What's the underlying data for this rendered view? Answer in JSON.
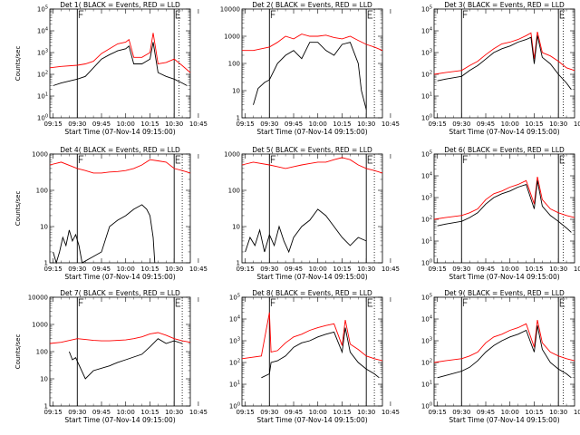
{
  "chart_data": {
    "type": "line",
    "grid": "off",
    "xlabel": "Start Time (07-Nov-14 09:15:00)",
    "xticks": [
      "09:15",
      "09:30",
      "09:45",
      "10:00",
      "10:15",
      "10:30",
      "10:45"
    ],
    "x_range_minutes": [
      -2,
      85
    ],
    "marker_labels": [
      "F",
      "E"
    ],
    "series_colors": {
      "events": "#000000",
      "lld": "#ff0000"
    },
    "panels": [
      {
        "title": "Det 1( BLACK = Events, RED = LLD",
        "ylabel": "Counts/sec",
        "yscale": "log",
        "ylim": [
          1,
          100000
        ],
        "yticks": [
          "10^0",
          "10^1",
          "10^2",
          "10^3",
          "10^4",
          "10^5"
        ],
        "markers_minutes": [
          15,
          75
        ],
        "dotted_minutes": [
          78
        ],
        "lld": {
          "x": [
            -2,
            5,
            15,
            20,
            25,
            30,
            35,
            40,
            45,
            47,
            50,
            55,
            60,
            62,
            65,
            70,
            75,
            80,
            85
          ],
          "y": [
            200,
            230,
            260,
            300,
            400,
            900,
            1500,
            2500,
            3000,
            4000,
            600,
            600,
            1000,
            8000,
            300,
            350,
            500,
            250,
            120
          ]
        },
        "events": {
          "x": [
            0,
            5,
            15,
            20,
            25,
            30,
            35,
            40,
            45,
            47,
            50,
            55,
            60,
            62,
            65,
            70,
            75,
            80,
            83
          ],
          "y": [
            30,
            40,
            60,
            80,
            200,
            500,
            800,
            1200,
            1500,
            2000,
            300,
            300,
            500,
            3000,
            120,
            80,
            60,
            40,
            30
          ]
        }
      },
      {
        "title": "Det 2( BLACK = Events, RED = LLD",
        "ylabel": "",
        "yscale": "log",
        "ylim": [
          1,
          10000
        ],
        "yticks": [
          "1",
          "10",
          "100",
          "1000",
          "10000"
        ],
        "markers_minutes": [
          15,
          75
        ],
        "dotted_minutes": [
          80
        ],
        "lld": {
          "x": [
            -2,
            5,
            15,
            20,
            25,
            30,
            35,
            40,
            45,
            50,
            55,
            60,
            65,
            70,
            75,
            80,
            85
          ],
          "y": [
            300,
            300,
            400,
            600,
            1000,
            800,
            1200,
            1000,
            1000,
            1100,
            900,
            800,
            1000,
            700,
            500,
            400,
            300
          ]
        },
        "events": {
          "x": [
            5,
            8,
            12,
            15,
            20,
            25,
            30,
            35,
            40,
            45,
            50,
            55,
            60,
            65,
            70,
            72,
            75
          ],
          "y": [
            3,
            12,
            20,
            25,
            100,
            200,
            300,
            150,
            600,
            600,
            300,
            200,
            500,
            600,
            100,
            10,
            2
          ]
        }
      },
      {
        "title": "Det 3( BLACK = Events, RED = LLD",
        "ylabel": "",
        "yscale": "log",
        "ylim": [
          1,
          100000
        ],
        "yticks": [
          "10^0",
          "10^1",
          "10^2",
          "10^3",
          "10^4",
          "10^5"
        ],
        "markers_minutes": [
          15,
          75
        ],
        "dotted_minutes": [
          78
        ],
        "lld": {
          "x": [
            -2,
            5,
            15,
            20,
            25,
            30,
            35,
            40,
            45,
            50,
            55,
            58,
            60,
            62,
            65,
            70,
            75,
            80,
            85
          ],
          "y": [
            100,
            120,
            150,
            250,
            400,
            800,
            1500,
            2500,
            3000,
            4000,
            6000,
            8000,
            500,
            9000,
            1000,
            700,
            400,
            200,
            150
          ]
        },
        "events": {
          "x": [
            0,
            5,
            15,
            20,
            25,
            30,
            35,
            40,
            45,
            50,
            55,
            58,
            60,
            62,
            65,
            70,
            75,
            80,
            83
          ],
          "y": [
            50,
            60,
            80,
            150,
            250,
            500,
            1000,
            1500,
            2000,
            3000,
            4000,
            5000,
            300,
            6000,
            600,
            300,
            100,
            40,
            20
          ]
        }
      },
      {
        "title": "Det 4( BLACK = Events, RED = LLD",
        "ylabel": "Counts/sec",
        "yscale": "log",
        "ylim": [
          1,
          1000
        ],
        "yticks": [
          "1",
          "10",
          "100",
          "1000"
        ],
        "markers_minutes": [
          15,
          75
        ],
        "dotted_minutes": [
          80
        ],
        "lld": {
          "x": [
            -2,
            5,
            15,
            20,
            25,
            30,
            35,
            40,
            45,
            50,
            55,
            60,
            65,
            70,
            75,
            80,
            85
          ],
          "y": [
            500,
            600,
            400,
            350,
            300,
            300,
            320,
            330,
            350,
            400,
            500,
            700,
            650,
            600,
            400,
            350,
            300
          ]
        },
        "events": {
          "x": [
            0,
            2,
            4,
            6,
            8,
            10,
            12,
            14,
            16,
            18,
            30,
            35,
            40,
            45,
            50,
            55,
            58,
            60,
            62,
            63
          ],
          "y": [
            2,
            1,
            2,
            5,
            3,
            8,
            4,
            6,
            3,
            1,
            2,
            10,
            15,
            20,
            30,
            40,
            30,
            20,
            5,
            1
          ]
        }
      },
      {
        "title": "Det 5( BLACK = Events, RED = LLD",
        "ylabel": "",
        "yscale": "log",
        "ylim": [
          1,
          1000
        ],
        "yticks": [
          "1",
          "10",
          "100",
          "1000"
        ],
        "markers_minutes": [
          15,
          75
        ],
        "dotted_minutes": [
          80
        ],
        "lld": {
          "x": [
            -2,
            5,
            15,
            20,
            25,
            30,
            35,
            40,
            45,
            50,
            55,
            60,
            65,
            70,
            75,
            80,
            85
          ],
          "y": [
            500,
            600,
            500,
            450,
            400,
            450,
            500,
            550,
            600,
            600,
            700,
            800,
            700,
            500,
            400,
            350,
            300
          ]
        },
        "events": {
          "x": [
            0,
            3,
            6,
            9,
            12,
            15,
            18,
            21,
            24,
            27,
            30,
            35,
            40,
            45,
            50,
            55,
            60,
            65,
            70,
            75
          ],
          "y": [
            2,
            5,
            3,
            8,
            2,
            6,
            3,
            10,
            4,
            2,
            5,
            10,
            15,
            30,
            20,
            10,
            5,
            3,
            5,
            4
          ]
        }
      },
      {
        "title": "Det 6( BLACK = Events, RED = LLD",
        "ylabel": "",
        "yscale": "log",
        "ylim": [
          1,
          100000
        ],
        "yticks": [
          "10^0",
          "10^1",
          "10^2",
          "10^3",
          "10^4",
          "10^5"
        ],
        "markers_minutes": [
          15,
          75
        ],
        "dotted_minutes": [
          78
        ],
        "lld": {
          "x": [
            -2,
            5,
            15,
            20,
            25,
            30,
            35,
            40,
            45,
            50,
            55,
            60,
            62,
            65,
            70,
            75,
            80,
            85
          ],
          "y": [
            100,
            120,
            150,
            200,
            300,
            800,
            1500,
            2000,
            3000,
            4000,
            6000,
            500,
            9000,
            800,
            300,
            200,
            150,
            120
          ]
        },
        "events": {
          "x": [
            0,
            5,
            15,
            20,
            25,
            30,
            35,
            40,
            45,
            50,
            55,
            60,
            62,
            65,
            70,
            75,
            80,
            83
          ],
          "y": [
            50,
            60,
            80,
            120,
            200,
            500,
            1000,
            1500,
            2000,
            3000,
            4000,
            300,
            6000,
            400,
            150,
            80,
            40,
            25
          ]
        }
      },
      {
        "title": "Det 7( BLACK = Events, RED = LLD",
        "ylabel": "Counts/sec",
        "yscale": "log",
        "ylim": [
          1,
          10000
        ],
        "yticks": [
          "1",
          "10",
          "100",
          "1000",
          "10000"
        ],
        "markers_minutes": [
          15,
          75
        ],
        "dotted_minutes": [
          80
        ],
        "lld": {
          "x": [
            -2,
            5,
            15,
            20,
            25,
            30,
            35,
            40,
            45,
            50,
            55,
            60,
            65,
            70,
            75,
            80,
            85
          ],
          "y": [
            200,
            220,
            300,
            280,
            260,
            250,
            250,
            260,
            270,
            300,
            350,
            450,
            500,
            400,
            300,
            250,
            220
          ]
        },
        "events": {
          "x": [
            10,
            12,
            14,
            20,
            25,
            35,
            40,
            45,
            55,
            60,
            65,
            70,
            75,
            80
          ],
          "y": [
            100,
            50,
            60,
            10,
            20,
            30,
            40,
            50,
            80,
            150,
            300,
            200,
            250,
            200
          ]
        }
      },
      {
        "title": "Det 8( BLACK = Events, RED = LLD",
        "ylabel": "",
        "yscale": "log",
        "ylim": [
          1,
          100000
        ],
        "yticks": [
          "10^0",
          "10^1",
          "10^2",
          "10^3",
          "10^4",
          "10^5"
        ],
        "markers_minutes": [
          15,
          75
        ],
        "dotted_minutes": [
          80
        ],
        "lld": {
          "x": [
            -2,
            10,
            15,
            16,
            20,
            25,
            30,
            35,
            40,
            45,
            50,
            55,
            60,
            62,
            65,
            70,
            75,
            80,
            85
          ],
          "y": [
            150,
            200,
            20000,
            300,
            350,
            800,
            1500,
            2000,
            3000,
            4000,
            5000,
            6000,
            600,
            9000,
            700,
            400,
            200,
            150,
            120
          ]
        },
        "events": {
          "x": [
            10,
            15,
            16,
            20,
            25,
            30,
            35,
            40,
            45,
            50,
            55,
            60,
            62,
            65,
            70,
            75,
            80,
            83
          ],
          "y": [
            20,
            30,
            100,
            120,
            200,
            500,
            800,
            1000,
            1500,
            2000,
            2500,
            300,
            4000,
            300,
            100,
            50,
            30,
            20
          ]
        }
      },
      {
        "title": "Det 9( BLACK = Events, RED = LLD",
        "ylabel": "",
        "yscale": "log",
        "ylim": [
          1,
          100000
        ],
        "yticks": [
          "10^0",
          "10^1",
          "10^2",
          "10^3",
          "10^4",
          "10^5"
        ],
        "markers_minutes": [
          15,
          75
        ],
        "dotted_minutes": [
          78
        ],
        "lld": {
          "x": [
            -2,
            5,
            15,
            20,
            25,
            30,
            35,
            40,
            45,
            50,
            55,
            60,
            62,
            65,
            70,
            75,
            80,
            85
          ],
          "y": [
            100,
            120,
            150,
            200,
            300,
            800,
            1500,
            2000,
            3000,
            4000,
            6000,
            500,
            9000,
            800,
            300,
            200,
            150,
            120
          ]
        },
        "events": {
          "x": [
            0,
            5,
            15,
            20,
            25,
            30,
            35,
            40,
            45,
            50,
            55,
            60,
            62,
            65,
            70,
            75,
            80,
            83
          ],
          "y": [
            20,
            25,
            40,
            60,
            120,
            300,
            600,
            1000,
            1500,
            2000,
            3000,
            300,
            5000,
            400,
            100,
            50,
            30,
            20
          ]
        }
      }
    ]
  }
}
